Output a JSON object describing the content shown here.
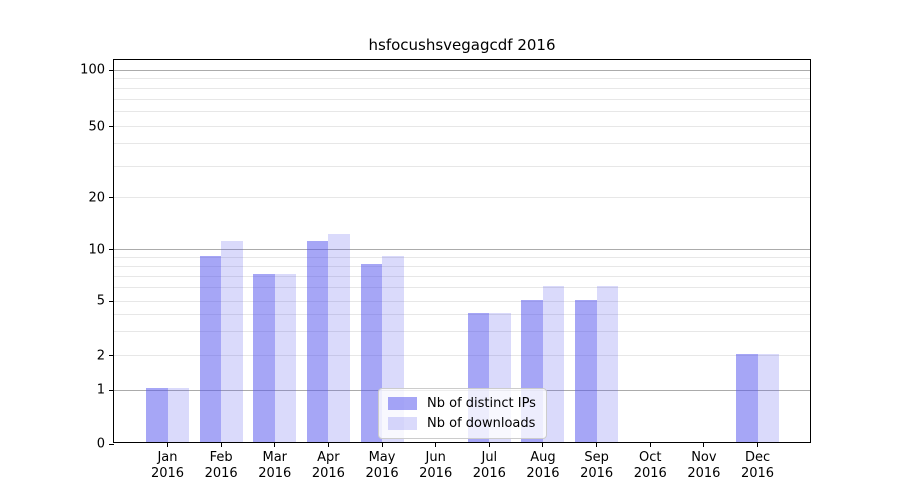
{
  "chart_data": {
    "type": "bar",
    "title": "hsfocushsvegagcdf 2016",
    "months": [
      "Jan",
      "Feb",
      "Mar",
      "Apr",
      "May",
      "Jun",
      "Jul",
      "Aug",
      "Sep",
      "Oct",
      "Nov",
      "Dec"
    ],
    "year": "2016",
    "categories": [
      "Jan 2016",
      "Feb 2016",
      "Mar 2016",
      "Apr 2016",
      "May 2016",
      "Jun 2016",
      "Jul 2016",
      "Aug 2016",
      "Sep 2016",
      "Oct 2016",
      "Nov 2016",
      "Dec 2016"
    ],
    "series": [
      {
        "name": "Nb of distinct IPs",
        "color": "rgba(85,85,238,0.52)",
        "values": [
          1,
          9,
          7,
          11,
          8,
          0,
          4,
          5,
          5,
          0,
          0,
          2
        ]
      },
      {
        "name": "Nb of downloads",
        "color": "rgba(85,85,238,0.22)",
        "values": [
          1,
          11,
          7,
          12,
          9,
          0,
          4,
          6,
          6,
          0,
          0,
          2
        ]
      }
    ],
    "xlabel": "",
    "ylabel": "",
    "yscale": "log-like",
    "yticks": [
      0,
      1,
      2,
      5,
      10,
      20,
      50,
      100
    ],
    "major_gridlines": [
      1,
      10,
      100
    ],
    "minor_gridlines": [
      2,
      3,
      4,
      5,
      6,
      7,
      8,
      9,
      20,
      30,
      40,
      50,
      60,
      70,
      80,
      90
    ],
    "ylim": [
      0,
      110
    ],
    "grid": true,
    "legend_position": "lower center inside"
  },
  "legend": {
    "items": [
      {
        "label": "Nb of distinct IPs",
        "color": "rgba(85,85,238,0.52)"
      },
      {
        "label": "Nb of downloads",
        "color": "rgba(85,85,238,0.22)"
      }
    ]
  },
  "colors": {
    "major_grid": "#ababab",
    "minor_grid": "#e7e7e7",
    "spine": "#000000",
    "text": "#000000",
    "legend_border": "#cccccc",
    "legend_bg": "rgba(255,255,255,0.8)"
  }
}
